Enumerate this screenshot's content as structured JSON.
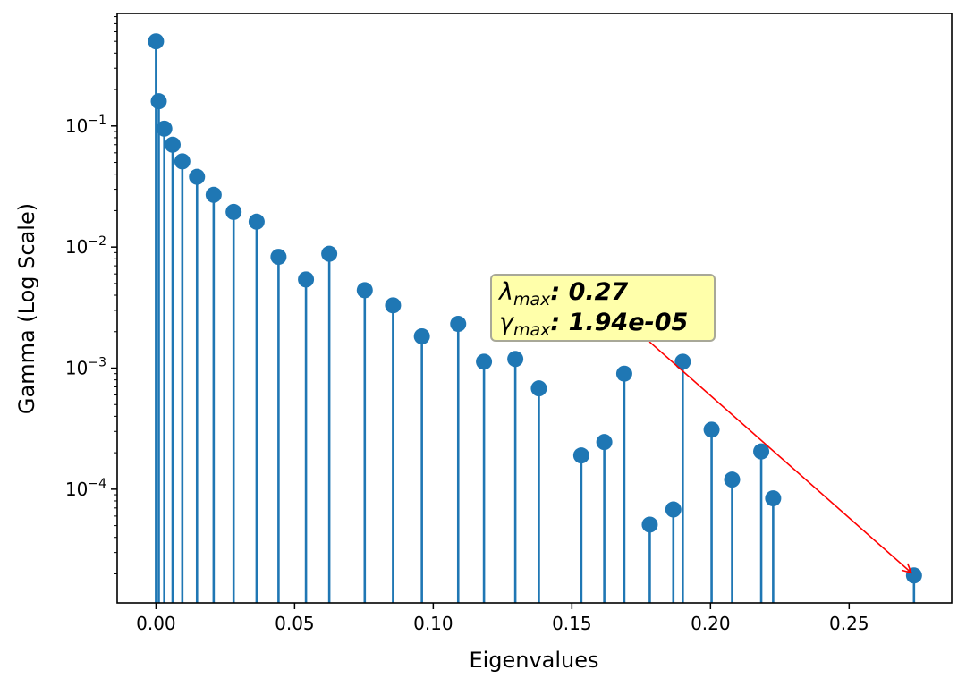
{
  "chart_data": {
    "type": "stem",
    "xlabel": "Eigenvalues",
    "ylabel": "Gamma (Log Scale)",
    "yscale": "log",
    "xlim": [
      -0.014,
      0.287
    ],
    "ylim": [
      1.15e-05,
      0.85
    ],
    "marker_color": "#1f77b4",
    "arrow_color": "#ff0000",
    "x_ticks": [
      {
        "value": 0.0,
        "label": "0.00"
      },
      {
        "value": 0.05,
        "label": "0.05"
      },
      {
        "value": 0.1,
        "label": "0.10"
      },
      {
        "value": 0.15,
        "label": "0.15"
      },
      {
        "value": 0.2,
        "label": "0.20"
      },
      {
        "value": 0.25,
        "label": "0.25"
      }
    ],
    "y_ticks": [
      {
        "value": 0.1,
        "base": "10",
        "exp": "−1"
      },
      {
        "value": 0.01,
        "base": "10",
        "exp": "−2"
      },
      {
        "value": 0.001,
        "base": "10",
        "exp": "−3"
      },
      {
        "value": 0.0001,
        "base": "10",
        "exp": "−4"
      }
    ],
    "points": [
      {
        "x": 0.0,
        "y": 0.5
      },
      {
        "x": 0.001,
        "y": 0.16
      },
      {
        "x": 0.003,
        "y": 0.095
      },
      {
        "x": 0.006,
        "y": 0.07
      },
      {
        "x": 0.0095,
        "y": 0.051
      },
      {
        "x": 0.0148,
        "y": 0.038
      },
      {
        "x": 0.0208,
        "y": 0.027
      },
      {
        "x": 0.028,
        "y": 0.0195
      },
      {
        "x": 0.0363,
        "y": 0.0162
      },
      {
        "x": 0.0442,
        "y": 0.0083
      },
      {
        "x": 0.0541,
        "y": 0.0054
      },
      {
        "x": 0.0625,
        "y": 0.0088
      },
      {
        "x": 0.0753,
        "y": 0.0044
      },
      {
        "x": 0.0855,
        "y": 0.0033
      },
      {
        "x": 0.0959,
        "y": 0.00183
      },
      {
        "x": 0.109,
        "y": 0.00232
      },
      {
        "x": 0.1183,
        "y": 0.00113
      },
      {
        "x": 0.1296,
        "y": 0.00119
      },
      {
        "x": 0.1381,
        "y": 0.00068
      },
      {
        "x": 0.1534,
        "y": 0.00019
      },
      {
        "x": 0.1617,
        "y": 0.000245
      },
      {
        "x": 0.1689,
        "y": 0.0009
      },
      {
        "x": 0.1781,
        "y": 5.1e-05
      },
      {
        "x": 0.1866,
        "y": 6.8e-05
      },
      {
        "x": 0.19,
        "y": 0.00113
      },
      {
        "x": 0.2004,
        "y": 0.00031
      },
      {
        "x": 0.2078,
        "y": 0.00012
      },
      {
        "x": 0.2183,
        "y": 0.000205
      },
      {
        "x": 0.2226,
        "y": 8.4e-05
      },
      {
        "x": 0.2734,
        "y": 1.94e-05
      }
    ],
    "annotation": {
      "lambda_symbol": "λ",
      "gamma_symbol": "γ",
      "subscript": "max",
      "lambda_value": ": 0.27",
      "gamma_value": ": 1.94e-05",
      "target": {
        "x": 0.2734,
        "y": 1.94e-05
      },
      "arrow_start": {
        "x": 0.178,
        "y": 0.00165
      }
    }
  }
}
